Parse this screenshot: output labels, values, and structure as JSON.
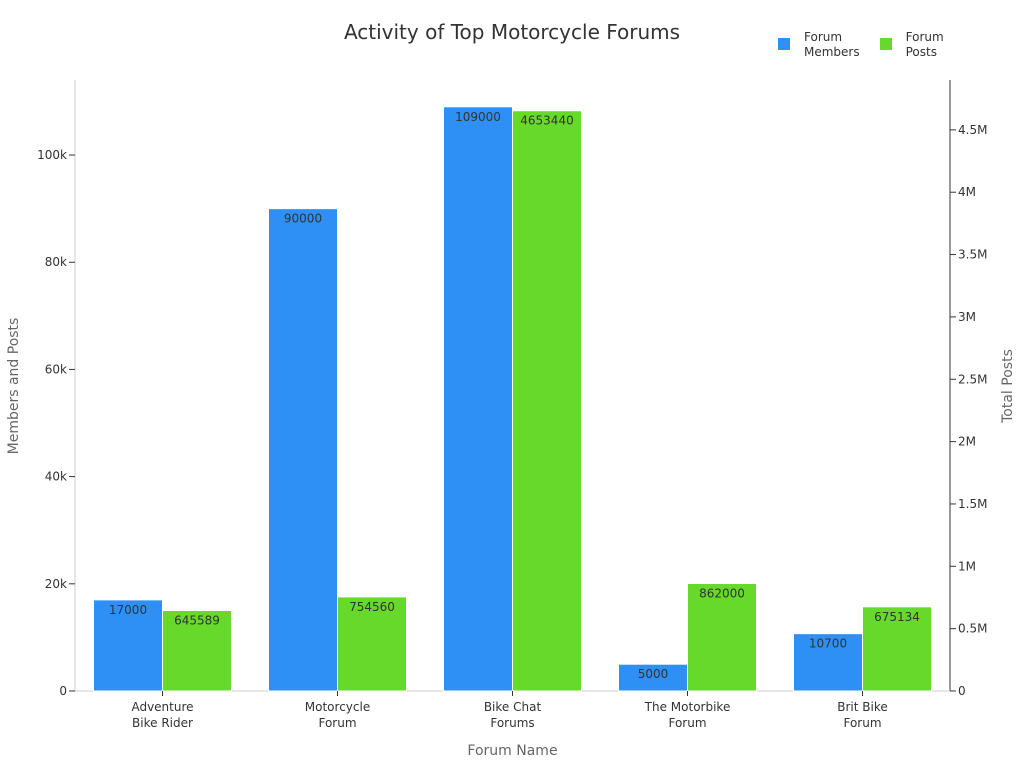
{
  "chart_data": {
    "type": "bar",
    "title": "Activity of Top Motorcycle Forums",
    "xlabel": "Forum Name",
    "ylabel": "Members and Posts",
    "y2label": "Total Posts",
    "categories": [
      "Adventure\nBike Rider",
      "Motorcycle\nForum",
      "Bike Chat\nForums",
      "The Motorbike\nForum",
      "Brit Bike\nForum"
    ],
    "series": [
      {
        "name": "Forum\nMembers",
        "axis": "left",
        "color": "#2e8ff5",
        "values": [
          17000,
          90000,
          109000,
          5000,
          10700
        ]
      },
      {
        "name": "Forum\nPosts",
        "axis": "right",
        "color": "#66d92b",
        "values": [
          645589,
          754560,
          4653440,
          862000,
          675134
        ]
      }
    ],
    "ylim": [
      0,
      114000
    ],
    "y2lim": [
      0,
      4900000
    ],
    "yticks": [
      0,
      20000,
      40000,
      60000,
      80000,
      100000
    ],
    "ytick_labels": [
      "0",
      "20k",
      "40k",
      "60k",
      "80k",
      "100k"
    ],
    "y2ticks": [
      0,
      500000,
      1000000,
      1500000,
      2000000,
      2500000,
      3000000,
      3500000,
      4000000,
      4500000
    ],
    "y2tick_labels": [
      "0",
      "0.5M",
      "1M",
      "1.5M",
      "2M",
      "2.5M",
      "3M",
      "3.5M",
      "4M",
      "4.5M"
    ],
    "legend_position": "top-right",
    "grid": false
  }
}
